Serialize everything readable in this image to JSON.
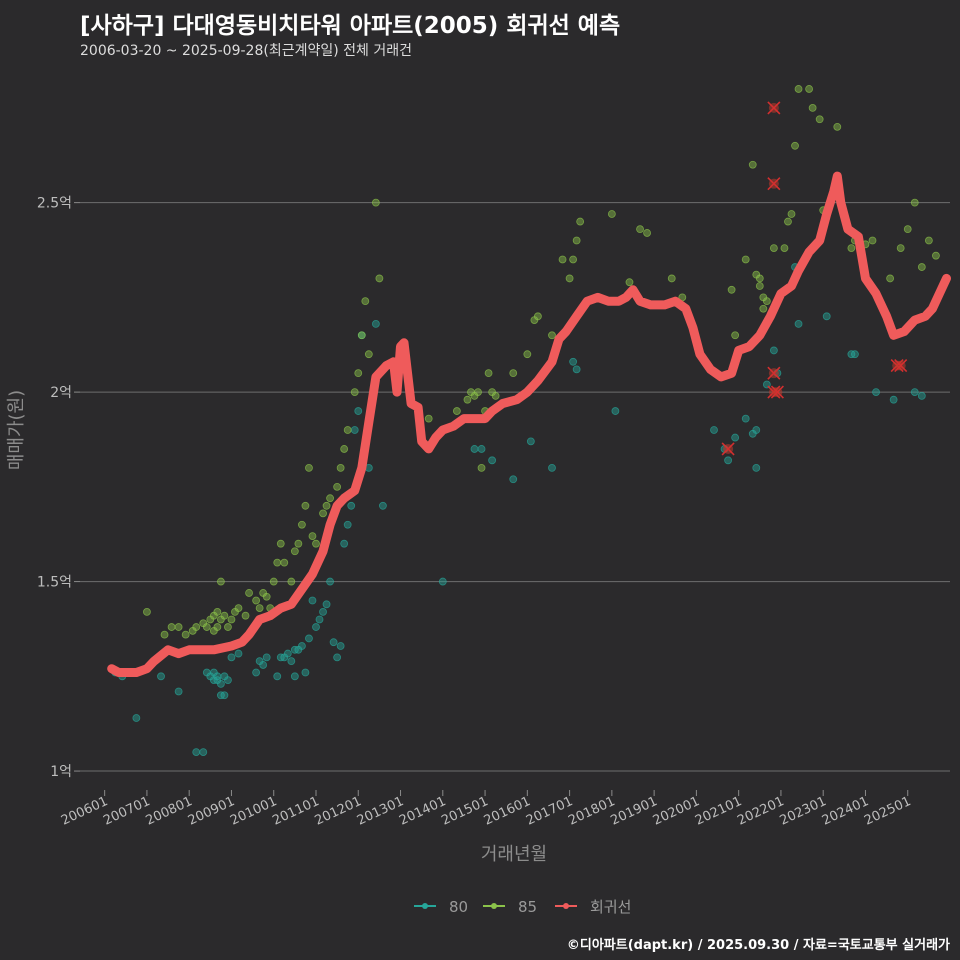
{
  "header": {
    "title": "[사하구] 다대영동비치타워 아파트(2005) 회귀선 예측",
    "subtitle": "2006-03-20 ~ 2025-09-28(최근계약일) 전체 거래건"
  },
  "caption": "©디아파트(dapt.kr) / 2025.09.30 / 자료=국토교통부 실거래가",
  "chart_data": {
    "type": "scatter",
    "xlabel": "거래년월",
    "ylabel": "매매가(원)",
    "ylim": [
      0.95,
      2.85
    ],
    "xlim": [
      "2005-06-01",
      "2026-01-01"
    ],
    "y_ticks": [
      {
        "value": 1.0,
        "label": "1억"
      },
      {
        "value": 1.5,
        "label": "1.5억"
      },
      {
        "value": 2.0,
        "label": "2억"
      },
      {
        "value": 2.5,
        "label": "2.5억"
      }
    ],
    "x_ticks": [
      "200601",
      "200701",
      "200801",
      "200901",
      "201001",
      "201101",
      "201201",
      "201301",
      "201401",
      "201501",
      "201601",
      "201701",
      "201801",
      "201901",
      "202001",
      "202101",
      "202201",
      "202301",
      "202401",
      "202501"
    ],
    "legend": {
      "position": "bottom",
      "entries": [
        "80",
        "85",
        "회귀선"
      ]
    },
    "series": [
      {
        "name": "80",
        "color": "#26a69a",
        "points": [
          [
            "2006-04",
            1.26
          ],
          [
            "2006-06",
            1.25
          ],
          [
            "2006-10",
            1.14
          ],
          [
            "2007-05",
            1.25
          ],
          [
            "2007-10",
            1.21
          ],
          [
            "2008-03",
            1.05
          ],
          [
            "2008-05",
            1.05
          ],
          [
            "2008-06",
            1.26
          ],
          [
            "2008-07",
            1.25
          ],
          [
            "2008-08",
            1.24
          ],
          [
            "2008-08",
            1.26
          ],
          [
            "2008-09",
            1.25
          ],
          [
            "2008-09",
            1.24
          ],
          [
            "2008-10",
            1.2
          ],
          [
            "2008-10",
            1.23
          ],
          [
            "2008-11",
            1.25
          ],
          [
            "2008-11",
            1.2
          ],
          [
            "2008-12",
            1.24
          ],
          [
            "2009-01",
            1.3
          ],
          [
            "2009-03",
            1.31
          ],
          [
            "2009-08",
            1.26
          ],
          [
            "2009-09",
            1.29
          ],
          [
            "2009-10",
            1.28
          ],
          [
            "2009-11",
            1.3
          ],
          [
            "2010-02",
            1.25
          ],
          [
            "2010-03",
            1.3
          ],
          [
            "2010-04",
            1.3
          ],
          [
            "2010-05",
            1.31
          ],
          [
            "2010-06",
            1.29
          ],
          [
            "2010-07",
            1.32
          ],
          [
            "2010-07",
            1.25
          ],
          [
            "2010-08",
            1.32
          ],
          [
            "2010-09",
            1.33
          ],
          [
            "2010-10",
            1.26
          ],
          [
            "2010-11",
            1.35
          ],
          [
            "2010-12",
            1.45
          ],
          [
            "2011-01",
            1.38
          ],
          [
            "2011-02",
            1.4
          ],
          [
            "2011-03",
            1.42
          ],
          [
            "2011-04",
            1.44
          ],
          [
            "2011-05",
            1.5
          ],
          [
            "2011-06",
            1.34
          ],
          [
            "2011-07",
            1.3
          ],
          [
            "2011-08",
            1.33
          ],
          [
            "2011-09",
            1.6
          ],
          [
            "2011-10",
            1.65
          ],
          [
            "2011-11",
            1.7
          ],
          [
            "2011-12",
            1.9
          ],
          [
            "2012-01",
            1.95
          ],
          [
            "2012-02",
            2.15
          ],
          [
            "2012-04",
            1.8
          ],
          [
            "2012-06",
            2.18
          ],
          [
            "2012-08",
            1.7
          ],
          [
            "2014-01",
            1.5
          ],
          [
            "2014-10",
            1.85
          ],
          [
            "2014-12",
            1.85
          ],
          [
            "2015-03",
            1.82
          ],
          [
            "2015-09",
            1.77
          ],
          [
            "2016-02",
            1.87
          ],
          [
            "2016-08",
            1.8
          ],
          [
            "2017-02",
            2.08
          ],
          [
            "2017-03",
            2.06
          ],
          [
            "2018-02",
            1.95
          ],
          [
            "2020-06",
            1.9
          ],
          [
            "2020-09",
            1.85
          ],
          [
            "2020-10",
            1.82
          ],
          [
            "2020-12",
            1.88
          ],
          [
            "2021-03",
            1.93
          ],
          [
            "2021-05",
            1.89
          ],
          [
            "2021-06",
            1.9
          ],
          [
            "2021-06",
            1.8
          ],
          [
            "2021-09",
            2.02
          ],
          [
            "2021-11",
            2.11
          ],
          [
            "2021-12",
            2.05
          ],
          [
            "2022-05",
            2.33
          ],
          [
            "2022-06",
            2.18
          ],
          [
            "2023-02",
            2.2
          ],
          [
            "2023-09",
            2.1
          ],
          [
            "2023-10",
            2.1
          ],
          [
            "2024-04",
            2.0
          ],
          [
            "2024-09",
            1.98
          ],
          [
            "2025-03",
            2.0
          ],
          [
            "2025-05",
            1.99
          ]
        ]
      },
      {
        "name": "85",
        "color": "#8bc34a",
        "points": [
          [
            "2007-01",
            1.42
          ],
          [
            "2007-06",
            1.36
          ],
          [
            "2007-08",
            1.38
          ],
          [
            "2007-10",
            1.38
          ],
          [
            "2007-12",
            1.36
          ],
          [
            "2008-02",
            1.37
          ],
          [
            "2008-03",
            1.38
          ],
          [
            "2008-05",
            1.39
          ],
          [
            "2008-06",
            1.38
          ],
          [
            "2008-07",
            1.4
          ],
          [
            "2008-08",
            1.37
          ],
          [
            "2008-08",
            1.41
          ],
          [
            "2008-09",
            1.42
          ],
          [
            "2008-09",
            1.38
          ],
          [
            "2008-10",
            1.5
          ],
          [
            "2008-10",
            1.4
          ],
          [
            "2008-11",
            1.41
          ],
          [
            "2008-12",
            1.38
          ],
          [
            "2009-01",
            1.4
          ],
          [
            "2009-02",
            1.42
          ],
          [
            "2009-03",
            1.43
          ],
          [
            "2009-05",
            1.41
          ],
          [
            "2009-06",
            1.47
          ],
          [
            "2009-08",
            1.45
          ],
          [
            "2009-09",
            1.43
          ],
          [
            "2009-10",
            1.47
          ],
          [
            "2009-11",
            1.46
          ],
          [
            "2009-12",
            1.43
          ],
          [
            "2010-01",
            1.5
          ],
          [
            "2010-02",
            1.55
          ],
          [
            "2010-03",
            1.6
          ],
          [
            "2010-04",
            1.55
          ],
          [
            "2010-06",
            1.5
          ],
          [
            "2010-07",
            1.58
          ],
          [
            "2010-08",
            1.6
          ],
          [
            "2010-09",
            1.65
          ],
          [
            "2010-10",
            1.7
          ],
          [
            "2010-11",
            1.8
          ],
          [
            "2010-12",
            1.62
          ],
          [
            "2011-01",
            1.6
          ],
          [
            "2011-03",
            1.68
          ],
          [
            "2011-04",
            1.7
          ],
          [
            "2011-05",
            1.72
          ],
          [
            "2011-07",
            1.75
          ],
          [
            "2011-08",
            1.8
          ],
          [
            "2011-09",
            1.85
          ],
          [
            "2011-10",
            1.9
          ],
          [
            "2011-12",
            2.0
          ],
          [
            "2012-01",
            2.05
          ],
          [
            "2012-02",
            2.15
          ],
          [
            "2012-03",
            2.24
          ],
          [
            "2012-04",
            2.1
          ],
          [
            "2012-06",
            2.5
          ],
          [
            "2012-07",
            2.3
          ],
          [
            "2013-09",
            1.93
          ],
          [
            "2014-05",
            1.95
          ],
          [
            "2014-08",
            1.98
          ],
          [
            "2014-09",
            2.0
          ],
          [
            "2014-10",
            1.99
          ],
          [
            "2014-11",
            2.0
          ],
          [
            "2014-12",
            1.8
          ],
          [
            "2015-01",
            1.95
          ],
          [
            "2015-02",
            2.05
          ],
          [
            "2015-03",
            2.0
          ],
          [
            "2015-04",
            1.99
          ],
          [
            "2015-09",
            2.05
          ],
          [
            "2016-01",
            2.1
          ],
          [
            "2016-03",
            2.19
          ],
          [
            "2016-04",
            2.2
          ],
          [
            "2016-08",
            2.15
          ],
          [
            "2016-11",
            2.35
          ],
          [
            "2017-01",
            2.3
          ],
          [
            "2017-02",
            2.35
          ],
          [
            "2017-03",
            2.4
          ],
          [
            "2017-04",
            2.45
          ],
          [
            "2018-01",
            2.47
          ],
          [
            "2018-06",
            2.29
          ],
          [
            "2018-09",
            2.43
          ],
          [
            "2018-11",
            2.42
          ],
          [
            "2019-06",
            2.3
          ],
          [
            "2019-09",
            2.25
          ],
          [
            "2020-11",
            2.27
          ],
          [
            "2020-12",
            2.15
          ],
          [
            "2021-03",
            2.35
          ],
          [
            "2021-06",
            2.31
          ],
          [
            "2021-07",
            2.3
          ],
          [
            "2021-07",
            2.28
          ],
          [
            "2021-08",
            2.25
          ],
          [
            "2021-08",
            2.22
          ],
          [
            "2021-09",
            2.24
          ],
          [
            "2021-05",
            2.6
          ],
          [
            "2021-11",
            2.38
          ],
          [
            "2022-02",
            2.38
          ],
          [
            "2022-03",
            2.45
          ],
          [
            "2022-04",
            2.47
          ],
          [
            "2022-05",
            2.65
          ],
          [
            "2022-06",
            2.8
          ],
          [
            "2022-09",
            2.8
          ],
          [
            "2022-10",
            2.75
          ],
          [
            "2022-12",
            2.72
          ],
          [
            "2023-01",
            2.48
          ],
          [
            "2023-05",
            2.7
          ],
          [
            "2023-09",
            2.38
          ],
          [
            "2023-10",
            2.4
          ],
          [
            "2024-01",
            2.39
          ],
          [
            "2024-03",
            2.4
          ],
          [
            "2024-08",
            2.3
          ],
          [
            "2024-11",
            2.38
          ],
          [
            "2025-01",
            2.43
          ],
          [
            "2025-03",
            2.5
          ],
          [
            "2025-05",
            2.33
          ],
          [
            "2025-07",
            2.4
          ],
          [
            "2025-09",
            2.36
          ]
        ]
      }
    ],
    "regression": {
      "name": "회귀선",
      "color": "#ef5b5b",
      "points": [
        [
          "2006-03",
          1.27
        ],
        [
          "2006-05",
          1.26
        ],
        [
          "2006-10",
          1.26
        ],
        [
          "2007-01",
          1.27
        ],
        [
          "2007-03",
          1.29
        ],
        [
          "2007-07",
          1.32
        ],
        [
          "2007-10",
          1.31
        ],
        [
          "2008-01",
          1.32
        ],
        [
          "2008-08",
          1.32
        ],
        [
          "2009-01",
          1.33
        ],
        [
          "2009-04",
          1.34
        ],
        [
          "2009-06",
          1.36
        ],
        [
          "2009-09",
          1.4
        ],
        [
          "2009-12",
          1.41
        ],
        [
          "2010-03",
          1.43
        ],
        [
          "2010-06",
          1.44
        ],
        [
          "2010-09",
          1.48
        ],
        [
          "2010-12",
          1.52
        ],
        [
          "2011-03",
          1.58
        ],
        [
          "2011-05",
          1.65
        ],
        [
          "2011-07",
          1.7
        ],
        [
          "2011-09",
          1.72
        ],
        [
          "2011-12",
          1.74
        ],
        [
          "2012-02",
          1.8
        ],
        [
          "2012-04",
          1.92
        ],
        [
          "2012-06",
          2.04
        ],
        [
          "2012-09",
          2.07
        ],
        [
          "2012-11",
          2.08
        ],
        [
          "2012-12",
          2.0
        ],
        [
          "2013-01",
          2.12
        ],
        [
          "2013-02",
          2.13
        ],
        [
          "2013-04",
          1.97
        ],
        [
          "2013-06",
          1.96
        ],
        [
          "2013-07",
          1.87
        ],
        [
          "2013-09",
          1.85
        ],
        [
          "2013-11",
          1.88
        ],
        [
          "2014-01",
          1.9
        ],
        [
          "2014-04",
          1.91
        ],
        [
          "2014-07",
          1.93
        ],
        [
          "2014-10",
          1.93
        ],
        [
          "2015-01",
          1.93
        ],
        [
          "2015-03",
          1.95
        ],
        [
          "2015-06",
          1.97
        ],
        [
          "2015-10",
          1.98
        ],
        [
          "2016-01",
          2.0
        ],
        [
          "2016-04",
          2.03
        ],
        [
          "2016-08",
          2.08
        ],
        [
          "2016-10",
          2.14
        ],
        [
          "2016-12",
          2.16
        ],
        [
          "2017-03",
          2.2
        ],
        [
          "2017-06",
          2.24
        ],
        [
          "2017-09",
          2.25
        ],
        [
          "2017-12",
          2.24
        ],
        [
          "2018-03",
          2.24
        ],
        [
          "2018-05",
          2.25
        ],
        [
          "2018-07",
          2.27
        ],
        [
          "2018-09",
          2.24
        ],
        [
          "2018-12",
          2.23
        ],
        [
          "2019-04",
          2.23
        ],
        [
          "2019-07",
          2.24
        ],
        [
          "2019-10",
          2.22
        ],
        [
          "2019-12",
          2.17
        ],
        [
          "2020-02",
          2.1
        ],
        [
          "2020-05",
          2.06
        ],
        [
          "2020-08",
          2.04
        ],
        [
          "2020-11",
          2.05
        ],
        [
          "2021-01",
          2.11
        ],
        [
          "2021-04",
          2.12
        ],
        [
          "2021-07",
          2.15
        ],
        [
          "2021-10",
          2.2
        ],
        [
          "2022-01",
          2.26
        ],
        [
          "2022-04",
          2.28
        ],
        [
          "2022-06",
          2.32
        ],
        [
          "2022-09",
          2.37
        ],
        [
          "2022-12",
          2.4
        ],
        [
          "2023-02",
          2.47
        ],
        [
          "2023-04",
          2.53
        ],
        [
          "2023-05",
          2.57
        ],
        [
          "2023-06",
          2.5
        ],
        [
          "2023-08",
          2.43
        ],
        [
          "2023-11",
          2.41
        ],
        [
          "2024-01",
          2.3
        ],
        [
          "2024-04",
          2.26
        ],
        [
          "2024-07",
          2.2
        ],
        [
          "2024-09",
          2.15
        ],
        [
          "2024-12",
          2.16
        ],
        [
          "2025-03",
          2.19
        ],
        [
          "2025-06",
          2.2
        ],
        [
          "2025-08",
          2.22
        ],
        [
          "2025-10",
          2.26
        ],
        [
          "2025-12",
          2.3
        ]
      ]
    },
    "outliers": [
      [
        "2021-11",
        2.75
      ],
      [
        "2021-11",
        2.55
      ],
      [
        "2021-11",
        2.05
      ],
      [
        "2021-11",
        2.0
      ],
      [
        "2021-12",
        2.0
      ],
      [
        "2020-10",
        1.85
      ],
      [
        "2024-10",
        2.07
      ],
      [
        "2024-11",
        2.07
      ]
    ]
  }
}
